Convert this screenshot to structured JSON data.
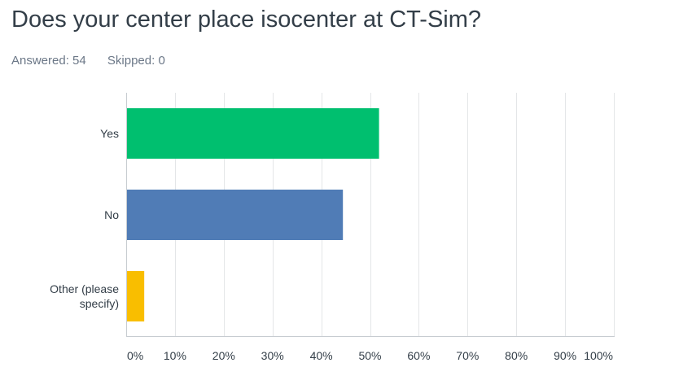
{
  "header": {
    "title": "Does your center place isocenter at CT-Sim?",
    "answered": "Answered: 54",
    "skipped": "Skipped: 0"
  },
  "chart_data": {
    "type": "bar",
    "orientation": "horizontal",
    "categories": [
      "Yes",
      "No",
      "Other (please specify)"
    ],
    "category_lines": [
      [
        "Yes"
      ],
      [
        "No"
      ],
      [
        "Other (please",
        "specify)"
      ]
    ],
    "values": [
      51.85,
      44.44,
      3.7
    ],
    "colors": [
      "#00bf6f",
      "#507cb6",
      "#f9be00"
    ],
    "xlim": [
      0,
      100
    ],
    "x_ticks": [
      0,
      10,
      20,
      30,
      40,
      50,
      60,
      70,
      80,
      90,
      100
    ],
    "x_tick_labels": [
      "0%",
      "10%",
      "20%",
      "30%",
      "40%",
      "50%",
      "60%",
      "70%",
      "80%",
      "90%",
      "100%"
    ],
    "grid": true,
    "legend": "none"
  }
}
